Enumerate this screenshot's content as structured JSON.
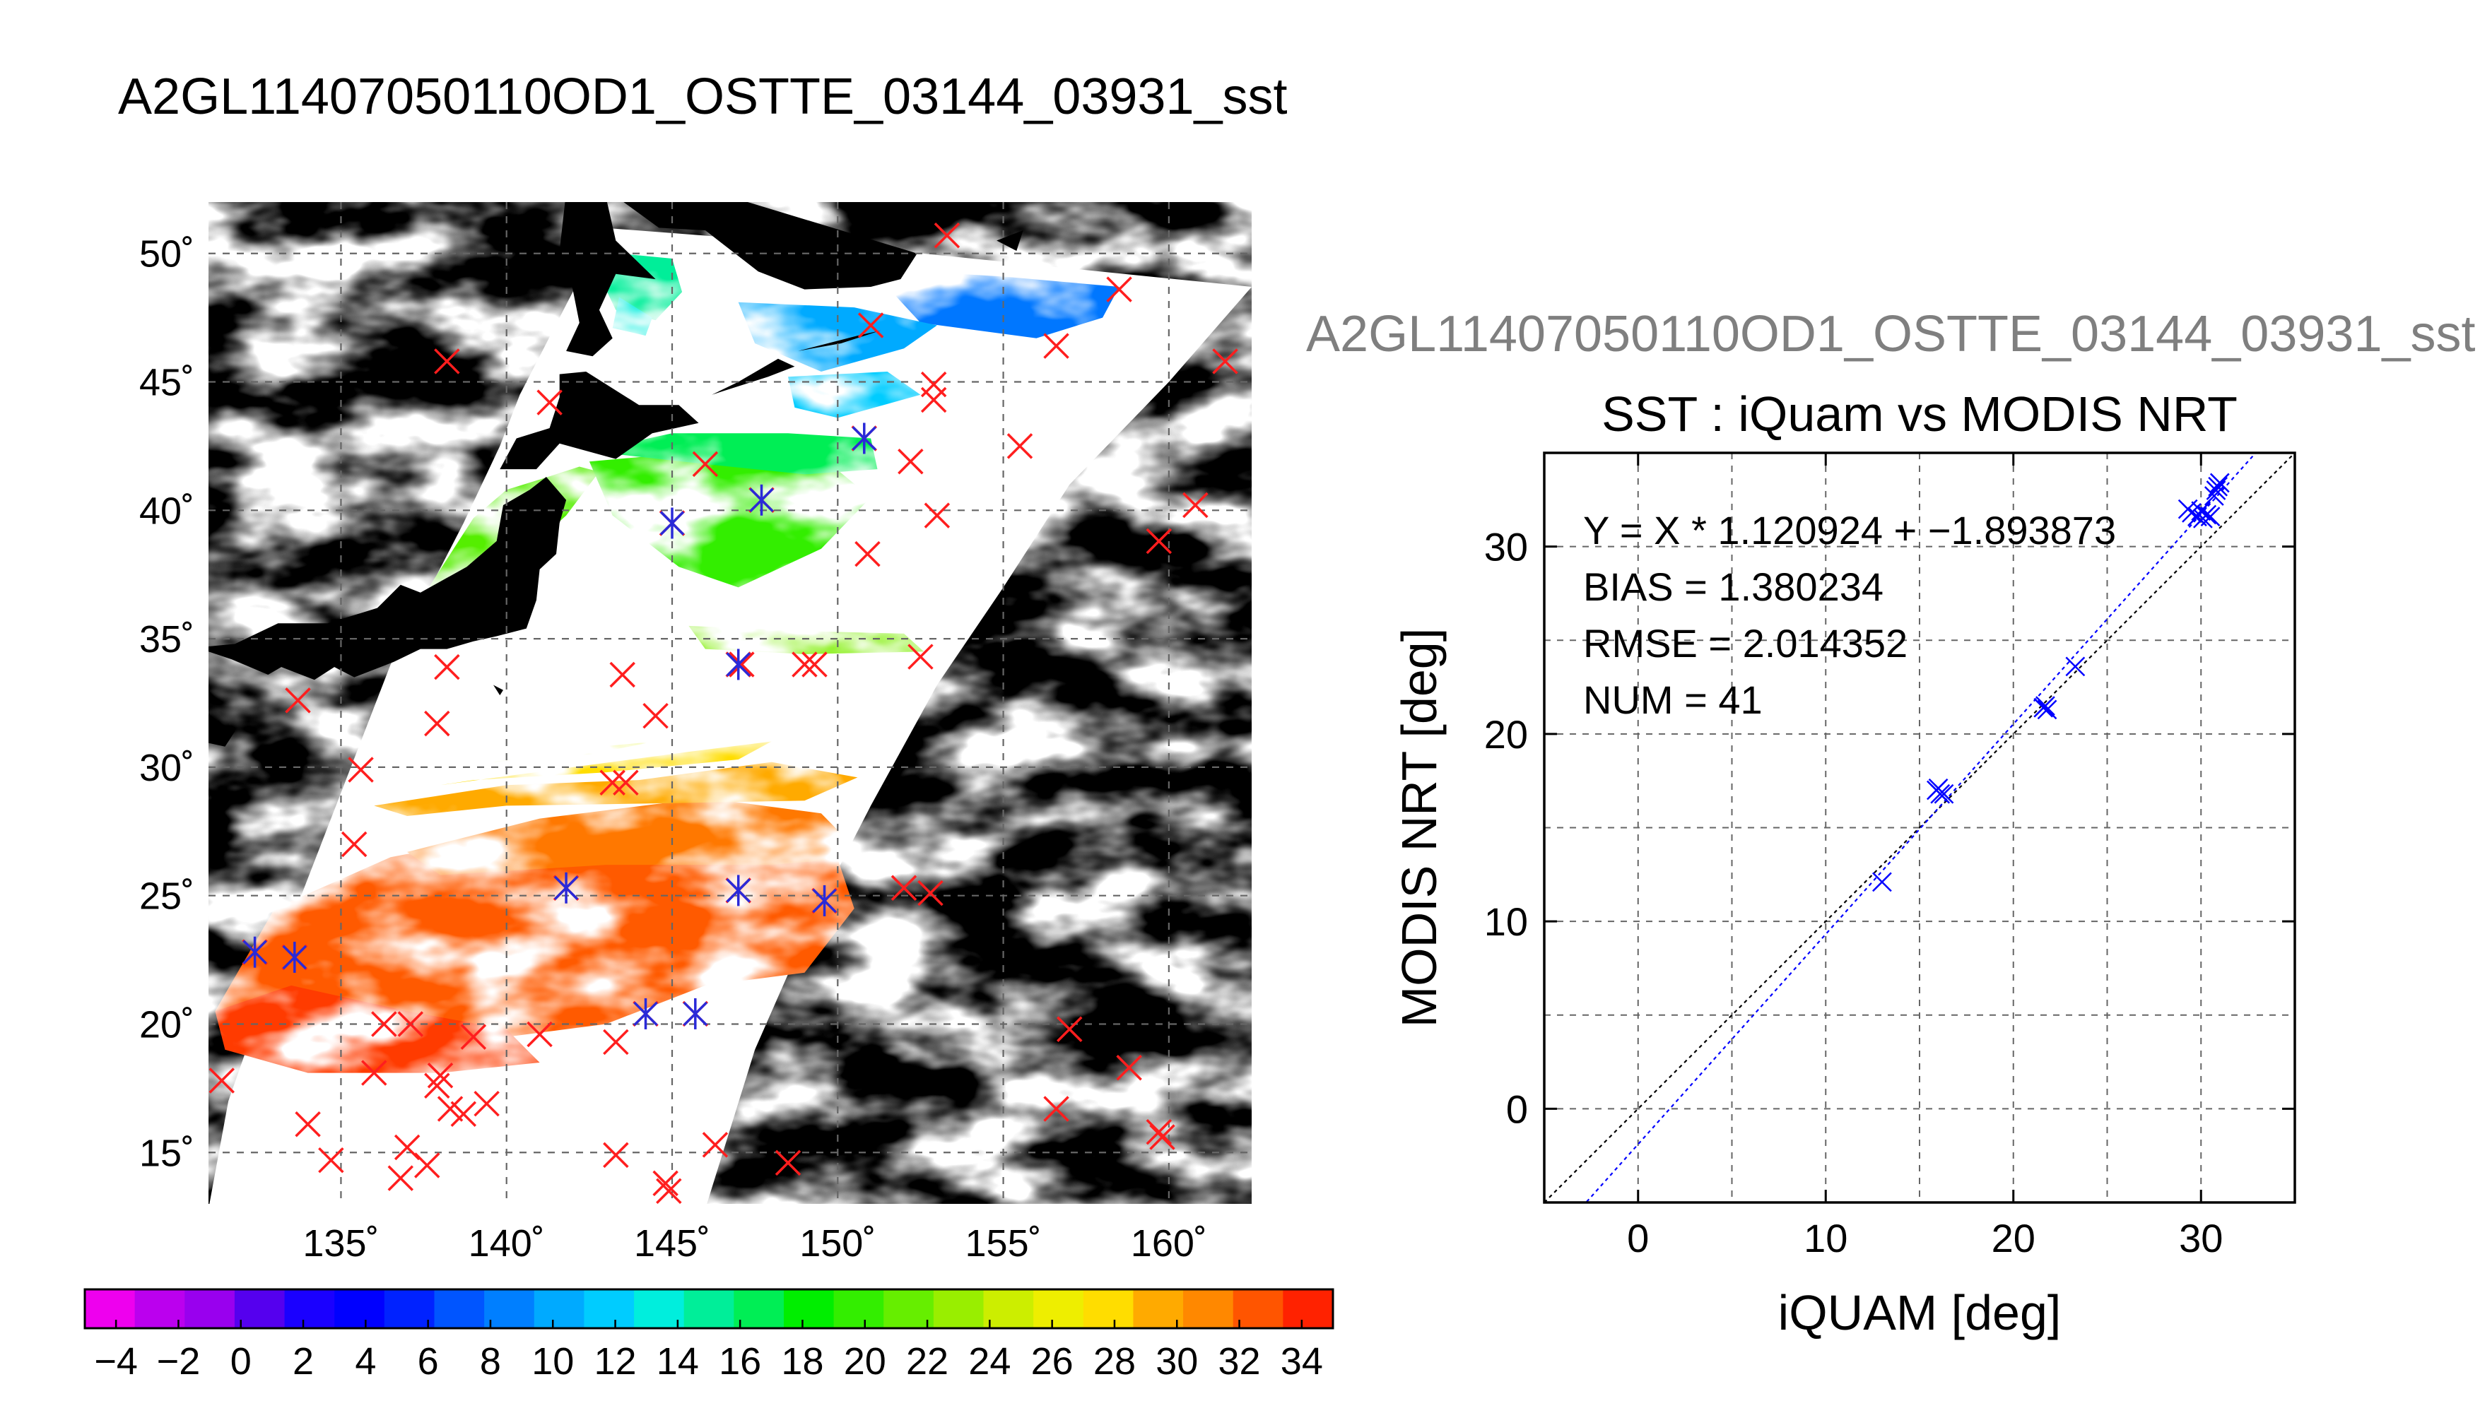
{
  "title": "A2GL11407050110OD1_OSTTE_03144_03931_sst",
  "colors": {
    "land": "#000000",
    "cloud": "#ffffff",
    "marker_matched": "#2a2ad8",
    "marker_unmatched": "#ff1e1e",
    "fit_line": "#0000ff",
    "identity_line": "#000000",
    "grid": "#666666"
  },
  "chart_data": [
    {
      "type": "heatmap",
      "description_key": "sst-map",
      "xlim": [
        131,
        162.5
      ],
      "ylim": [
        13,
        52
      ],
      "xticks": [
        135,
        140,
        145,
        150,
        155,
        160
      ],
      "xtick_labels": [
        "135˚",
        "140˚",
        "145˚",
        "150˚",
        "155˚",
        "160˚"
      ],
      "yticks": [
        15,
        20,
        25,
        30,
        35,
        40,
        45,
        50
      ],
      "ytick_labels": [
        "15˚",
        "20˚",
        "25˚",
        "30˚",
        "35˚",
        "40˚",
        "45˚",
        "50˚"
      ],
      "grid": true,
      "colorbar": {
        "min": -5,
        "max": 35,
        "ticks": [
          -4,
          -2,
          0,
          2,
          4,
          6,
          8,
          10,
          12,
          14,
          16,
          18,
          20,
          22,
          24,
          26,
          28,
          30,
          32,
          34
        ],
        "tick_labels": [
          "−4",
          "−2",
          "0",
          "2",
          "4",
          "6",
          "8",
          "10",
          "12",
          "14",
          "16",
          "18",
          "20",
          "22",
          "24",
          "26",
          "28",
          "30",
          "32",
          "34"
        ],
        "colors": [
          "#ee00ee",
          "#bb00ee",
          "#9900ee",
          "#5500ee",
          "#1a00ff",
          "#0000ff",
          "#0022ff",
          "#0055ff",
          "#007fff",
          "#00aaff",
          "#00ccff",
          "#00eedd",
          "#00ee99",
          "#00ee55",
          "#00ee00",
          "#33ee00",
          "#66ee00",
          "#99ee00",
          "#ccee00",
          "#eeee00",
          "#ffdd00",
          "#ffaa00",
          "#ff8800",
          "#ff5500",
          "#ff2200"
        ]
      },
      "matched_points": [
        {
          "lon": 132.4,
          "lat": 22.8
        },
        {
          "lon": 133.6,
          "lat": 22.6
        },
        {
          "lon": 141.8,
          "lat": 25.3
        },
        {
          "lon": 147.0,
          "lat": 25.2
        },
        {
          "lon": 149.6,
          "lat": 24.8
        },
        {
          "lon": 144.2,
          "lat": 20.4
        },
        {
          "lon": 145.7,
          "lat": 20.4
        },
        {
          "lon": 145.0,
          "lat": 39.5
        },
        {
          "lon": 147.7,
          "lat": 40.4
        },
        {
          "lon": 150.8,
          "lat": 42.8
        },
        {
          "lon": 147.0,
          "lat": 34.0
        }
      ],
      "unmatched_points": [
        {
          "lon": 153.3,
          "lat": 50.7
        },
        {
          "lon": 158.5,
          "lat": 48.6
        },
        {
          "lon": 156.6,
          "lat": 46.4
        },
        {
          "lon": 151.0,
          "lat": 47.2
        },
        {
          "lon": 152.9,
          "lat": 44.9
        },
        {
          "lon": 152.9,
          "lat": 44.3
        },
        {
          "lon": 155.5,
          "lat": 42.5
        },
        {
          "lon": 152.2,
          "lat": 41.9
        },
        {
          "lon": 146.0,
          "lat": 41.8
        },
        {
          "lon": 141.3,
          "lat": 44.2
        },
        {
          "lon": 138.2,
          "lat": 45.8
        },
        {
          "lon": 161.7,
          "lat": 45.8
        },
        {
          "lon": 160.8,
          "lat": 40.2
        },
        {
          "lon": 159.7,
          "lat": 38.8
        },
        {
          "lon": 153.0,
          "lat": 39.8
        },
        {
          "lon": 150.9,
          "lat": 38.3
        },
        {
          "lon": 152.5,
          "lat": 34.3
        },
        {
          "lon": 149.3,
          "lat": 34.0
        },
        {
          "lon": 149.0,
          "lat": 34.0
        },
        {
          "lon": 147.1,
          "lat": 34.0
        },
        {
          "lon": 143.5,
          "lat": 33.6
        },
        {
          "lon": 144.5,
          "lat": 32.0
        },
        {
          "lon": 138.2,
          "lat": 33.9
        },
        {
          "lon": 137.9,
          "lat": 31.7
        },
        {
          "lon": 133.7,
          "lat": 32.6
        },
        {
          "lon": 135.6,
          "lat": 29.9
        },
        {
          "lon": 143.2,
          "lat": 29.4
        },
        {
          "lon": 143.6,
          "lat": 29.4
        },
        {
          "lon": 135.4,
          "lat": 27.0
        },
        {
          "lon": 152.0,
          "lat": 25.3
        },
        {
          "lon": 152.8,
          "lat": 25.1
        },
        {
          "lon": 141.0,
          "lat": 19.6
        },
        {
          "lon": 139.0,
          "lat": 19.5
        },
        {
          "lon": 143.3,
          "lat": 19.3
        },
        {
          "lon": 136.3,
          "lat": 20.0
        },
        {
          "lon": 137.1,
          "lat": 20.0
        },
        {
          "lon": 138.0,
          "lat": 18.0
        },
        {
          "lon": 137.9,
          "lat": 17.6
        },
        {
          "lon": 136.0,
          "lat": 18.1
        },
        {
          "lon": 138.3,
          "lat": 16.7
        },
        {
          "lon": 138.7,
          "lat": 16.5
        },
        {
          "lon": 139.4,
          "lat": 16.9
        },
        {
          "lon": 131.4,
          "lat": 17.8
        },
        {
          "lon": 134.0,
          "lat": 16.1
        },
        {
          "lon": 134.7,
          "lat": 14.7
        },
        {
          "lon": 137.0,
          "lat": 15.2
        },
        {
          "lon": 137.6,
          "lat": 14.5
        },
        {
          "lon": 136.8,
          "lat": 14.0
        },
        {
          "lon": 143.3,
          "lat": 14.9
        },
        {
          "lon": 144.8,
          "lat": 13.8
        },
        {
          "lon": 144.9,
          "lat": 13.5
        },
        {
          "lon": 146.3,
          "lat": 15.3
        },
        {
          "lon": 148.5,
          "lat": 14.6
        },
        {
          "lon": 157.0,
          "lat": 19.8
        },
        {
          "lon": 156.6,
          "lat": 16.7
        },
        {
          "lon": 158.8,
          "lat": 18.3
        },
        {
          "lon": 159.8,
          "lat": 15.6
        },
        {
          "lon": 159.7,
          "lat": 15.8
        }
      ]
    },
    {
      "type": "scatter",
      "title": "SST : iQuam vs MODIS NRT",
      "xlabel": "iQUAM [deg]",
      "ylabel": "MODIS NRT [deg]",
      "xlim": [
        -5,
        35
      ],
      "ylim": [
        -5,
        35
      ],
      "xticks": [
        0,
        10,
        20,
        30
      ],
      "yticks": [
        0,
        10,
        20,
        30
      ],
      "grid": true,
      "annotations": [
        "Y = X * 1.120924 + −1.893873",
        "BIAS = 1.380234",
        "RMSE = 2.014352",
        "NUM = 41"
      ],
      "fit": {
        "slope": 1.120924,
        "intercept": -1.893873
      },
      "points": [
        {
          "x": 13.0,
          "y": 12.1
        },
        {
          "x": 15.9,
          "y": 17.0
        },
        {
          "x": 16.0,
          "y": 17.1
        },
        {
          "x": 16.1,
          "y": 16.8
        },
        {
          "x": 16.3,
          "y": 16.8
        },
        {
          "x": 21.6,
          "y": 21.4
        },
        {
          "x": 21.7,
          "y": 21.5
        },
        {
          "x": 21.8,
          "y": 21.3
        },
        {
          "x": 23.3,
          "y": 23.6
        },
        {
          "x": 29.3,
          "y": 32.0
        },
        {
          "x": 29.5,
          "y": 31.8
        },
        {
          "x": 29.8,
          "y": 31.6
        },
        {
          "x": 30.0,
          "y": 31.9
        },
        {
          "x": 30.1,
          "y": 31.5
        },
        {
          "x": 30.3,
          "y": 31.7
        },
        {
          "x": 30.5,
          "y": 31.6
        },
        {
          "x": 30.7,
          "y": 32.7
        },
        {
          "x": 30.8,
          "y": 33.0
        },
        {
          "x": 30.9,
          "y": 33.2
        },
        {
          "x": 31.0,
          "y": 33.4
        }
      ]
    }
  ]
}
